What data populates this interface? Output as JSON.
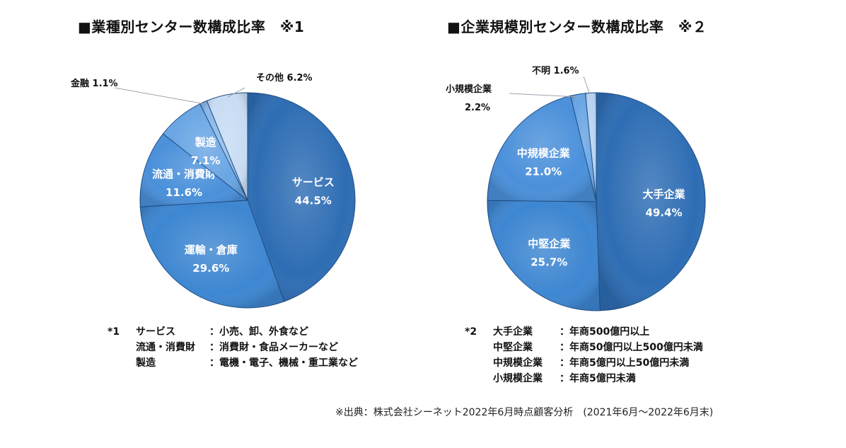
{
  "chart_data": [
    {
      "type": "pie",
      "title": "■業種別センター数構成比率　※1",
      "slices": [
        {
          "label": "サービス",
          "value": 44.5,
          "display": "44.5%",
          "color": "#2e6db4",
          "label_inside": true
        },
        {
          "label": "運輸・倉庫",
          "value": 29.6,
          "display": "29.6%",
          "color": "#3d86d1",
          "label_inside": true
        },
        {
          "label": "流通・消費財",
          "value": 11.6,
          "display": "11.6%",
          "color": "#4a90da",
          "label_inside": true
        },
        {
          "label": "製造",
          "value": 7.1,
          "display": "7.1%",
          "color": "#6aa6e4",
          "label_inside": true
        },
        {
          "label": "金融",
          "value": 1.1,
          "display": "1.1%",
          "color": "#8cb9ea",
          "label_inside": false
        },
        {
          "label": "その他",
          "value": 6.2,
          "display": "6.2%",
          "color": "#c8dcf4",
          "label_inside": false
        }
      ]
    },
    {
      "type": "pie",
      "title": "■企業規模別センター数構成比率　※２",
      "slices": [
        {
          "label": "大手企業",
          "value": 49.4,
          "display": "49.4%",
          "color": "#2e6db4",
          "label_inside": true
        },
        {
          "label": "中堅企業",
          "value": 25.7,
          "display": "25.7%",
          "color": "#3d86d1",
          "label_inside": true
        },
        {
          "label": "中規模企業",
          "value": 21.0,
          "display": "21.0%",
          "color": "#4a90da",
          "label_inside": true
        },
        {
          "label": "小規模企業",
          "value": 2.2,
          "display": "2.2%",
          "color": "#6aa6e4",
          "label_inside": false
        },
        {
          "label": "不明",
          "value": 1.6,
          "display": "1.6%",
          "color": "#b8d2f0",
          "label_inside": false
        }
      ]
    }
  ],
  "notes1": {
    "mark": "*1",
    "rows": [
      {
        "term": "サービス",
        "desc": "：小売、卸、外食など"
      },
      {
        "term": "流通・消費財",
        "desc": "：消費財・食品メーカーなど"
      },
      {
        "term": "製造",
        "desc": "：電機・電子、機械・重工業など"
      }
    ]
  },
  "notes2": {
    "mark": "*2",
    "rows": [
      {
        "term": "大手企業",
        "desc": "：年商500億円以上"
      },
      {
        "term": "中堅企業",
        "desc": "：年商50億円以上500億円未満"
      },
      {
        "term": "中規模企業",
        "desc": "：年商5億円以上50億円未満"
      },
      {
        "term": "小規模企業",
        "desc": "：年商5億円未満"
      }
    ]
  },
  "source": "※出典：株式会社シーネット2022年6月時点顧客分析　(2021年6月～2022年6月末)"
}
